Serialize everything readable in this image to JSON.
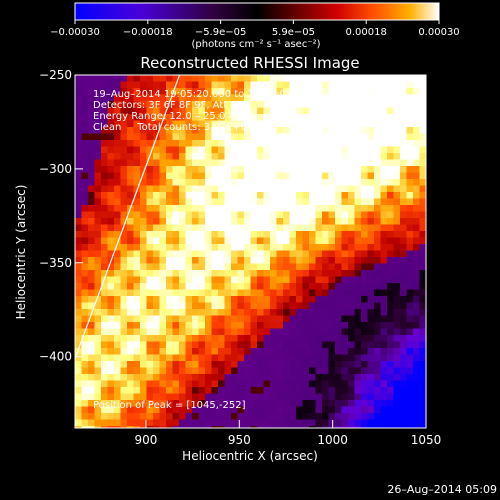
{
  "chart_data": {
    "type": "heatmap",
    "title": "Reconstructed RHESSI Image",
    "xlabel": "Heliocentric X (arcsec)",
    "ylabel": "Heliocentric Y (arcsec)",
    "xlim": [
      862,
      1050
    ],
    "ylim": [
      -438,
      -250
    ],
    "x_ticks": [
      900,
      950,
      1000,
      1050
    ],
    "y_ticks": [
      -250,
      -300,
      -350,
      -400
    ],
    "colorbar": {
      "min": -0.0003,
      "max": 0.0003,
      "tick_labels": [
        "-0.00030",
        "-0.00018",
        "-5.9e-05",
        "5.9e-05",
        "0.00018",
        "0.00030"
      ],
      "units_label": "(photons cm⁻² s⁻¹ asec⁻²)",
      "colormap": [
        "#0000ff",
        "#6a00d0",
        "#2a0030",
        "#000000",
        "#5a0000",
        "#c00000",
        "#ff4000",
        "#ffa000",
        "#ffff80",
        "#ffffff"
      ]
    },
    "annotations": {
      "time_range": "19–Aug–2014 19:05:20.000 to 19:10:08.000",
      "detectors": "Detectors: 3F 6F 8F 9F, Att 0",
      "energy_range": "Energy Range: 12.0 – 25.0 keV",
      "clean_counts": "Clean     Total counts: 3.92E+03",
      "peak_position": "Position of Peak = [1045,-252]"
    },
    "limb_line": {
      "x": [
        862,
        918
      ],
      "y": [
        -401,
        -250
      ]
    },
    "hot_region": "upper-left diagonal band (bright red/orange) with dark-purple/blue background at lower-right"
  },
  "footer": {
    "timestamp": "26–Aug–2014 05:09"
  }
}
